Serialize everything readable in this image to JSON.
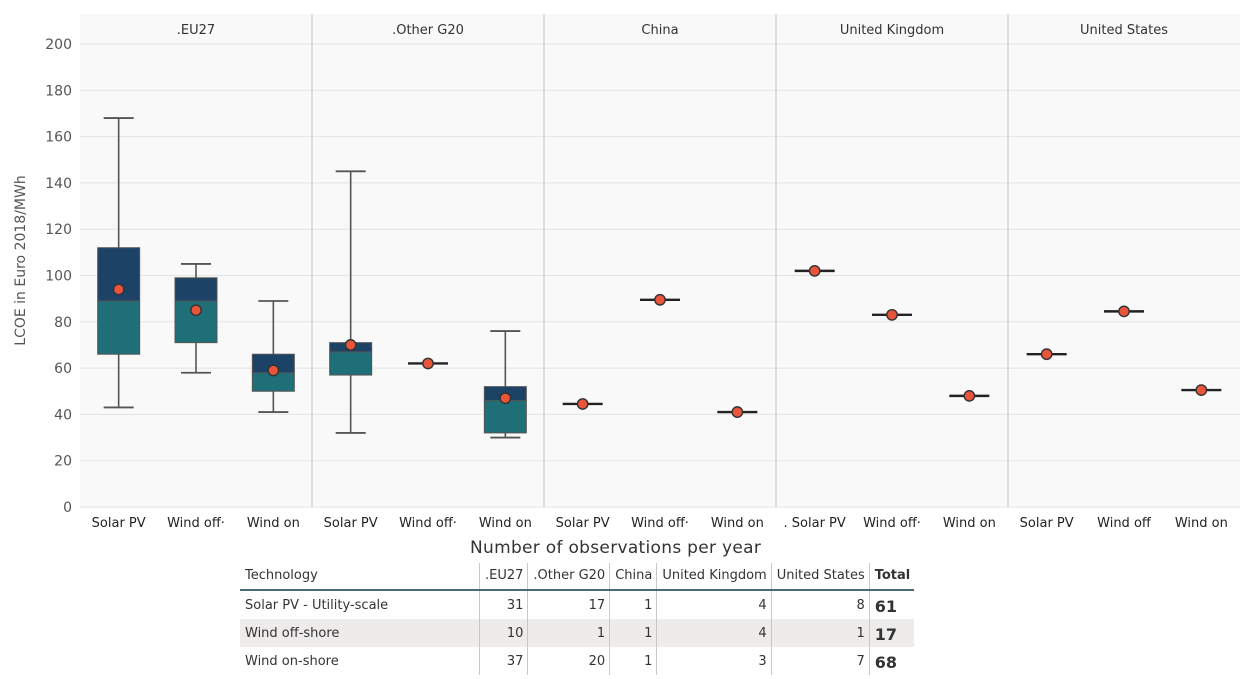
{
  "chart_data": {
    "type": "box",
    "ylabel": "LCOE in Euro 2018/MWh",
    "ylim": [
      0,
      200
    ],
    "yticks": [
      0,
      20,
      40,
      60,
      80,
      100,
      120,
      140,
      160,
      180,
      200
    ],
    "panels": [
      {
        "title": ".EU27",
        "categories": [
          "Solar PV",
          "Wind off·",
          "Wind on"
        ],
        "boxes": [
          {
            "min": 43,
            "q1": 66,
            "median": 89,
            "q3": 112,
            "max": 168,
            "mean": 94
          },
          {
            "min": 58,
            "q1": 71,
            "median": 89,
            "q3": 99,
            "max": 105,
            "mean": 85
          },
          {
            "min": 41,
            "q1": 50,
            "median": 58,
            "q3": 66,
            "max": 89,
            "mean": 59
          }
        ]
      },
      {
        "title": ".Other G20",
        "categories": [
          "Solar PV",
          "Wind off·",
          "Wind on"
        ],
        "boxes": [
          {
            "min": 32,
            "q1": 57,
            "median": 67,
            "q3": 71,
            "max": 145,
            "mean": 70
          },
          {
            "value": 62,
            "mean": 62
          },
          {
            "min": 30,
            "q1": 32,
            "median": 46,
            "q3": 52,
            "max": 76,
            "mean": 47
          }
        ]
      },
      {
        "title": "China",
        "categories": [
          "Solar PV",
          "Wind off·",
          "Wind on"
        ],
        "boxes": [
          {
            "value": 44.5,
            "mean": 44.5
          },
          {
            "value": 89.5,
            "mean": 89.5
          },
          {
            "value": 41,
            "mean": 41
          }
        ]
      },
      {
        "title": "United Kingdom",
        "categories": [
          ". Solar PV",
          "Wind off·",
          "Wind on"
        ],
        "boxes": [
          {
            "value": 102,
            "mean": 102
          },
          {
            "value": 83,
            "mean": 83
          },
          {
            "value": 48,
            "mean": 48
          }
        ]
      },
      {
        "title": "United States",
        "categories": [
          "Solar PV",
          "Wind off",
          "Wind on"
        ],
        "boxes": [
          {
            "value": 66,
            "mean": 66
          },
          {
            "value": 84.5,
            "mean": 84.5
          },
          {
            "value": 50.5,
            "mean": 50.5
          }
        ]
      }
    ],
    "colors": {
      "box_upper": "#1c4266",
      "box_lower": "#1f6f78",
      "mean_fill": "#e8553a",
      "mean_stroke": "#333333",
      "whisker": "#555555",
      "grid": "#e3e3e3",
      "panel_bg": "#f9f9f9"
    }
  },
  "table": {
    "title": "Number of observations per year",
    "headers": [
      "Technology",
      ".EU27",
      ".Other G20",
      "China",
      "United Kingdom",
      "United States",
      "Total"
    ],
    "rows": [
      [
        "Solar PV - Utility-scale",
        "31",
        "17",
        "1",
        "4",
        "8",
        "61"
      ],
      [
        "Wind off-shore",
        "10",
        "1",
        "1",
        "4",
        "1",
        "17"
      ],
      [
        "Wind on-shore",
        "37",
        "20",
        "1",
        "3",
        "7",
        "68"
      ]
    ]
  }
}
